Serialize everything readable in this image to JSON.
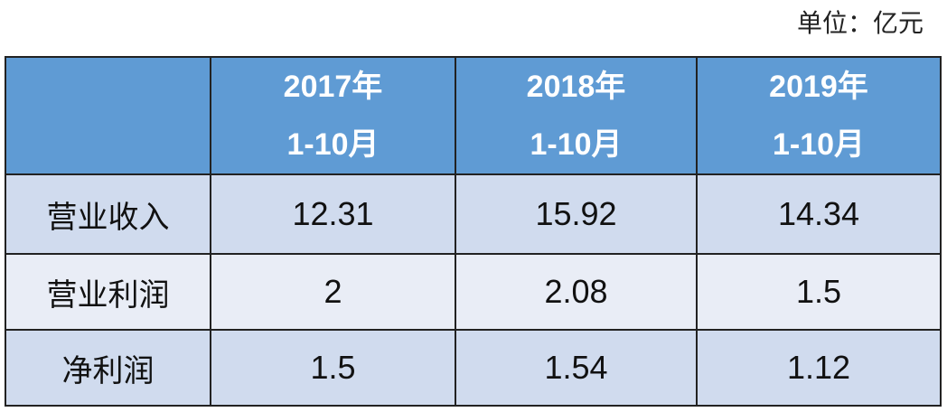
{
  "unit": "单位：亿元",
  "table": {
    "header": [
      [
        "2017年",
        "1-10月"
      ],
      [
        "2018年",
        "1-10月"
      ],
      [
        "2019年",
        "1-10月"
      ]
    ],
    "rows": [
      [
        "营业收入",
        "12.31",
        "15.92",
        "14.34"
      ],
      [
        "营业利润",
        "2",
        "2.08",
        "1.5"
      ],
      [
        "净利润",
        "1.5",
        "1.54",
        "1.12"
      ]
    ]
  }
}
